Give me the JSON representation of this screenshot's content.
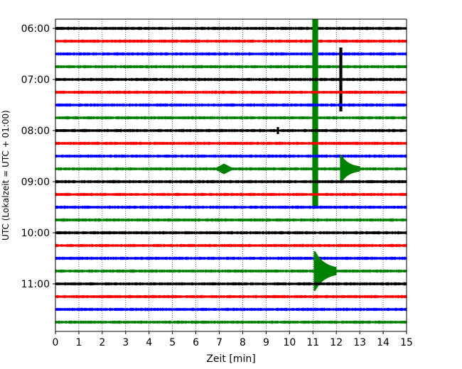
{
  "chart_data": {
    "type": "line",
    "title": "",
    "xlabel": "Zeit  [min]",
    "ylabel": "UTC (Lokalzeit = UTC + 01:00)",
    "xlim": [
      0,
      15
    ],
    "x_ticks": [
      0,
      1,
      2,
      3,
      4,
      5,
      6,
      7,
      8,
      9,
      10,
      11,
      12,
      13,
      14,
      15
    ],
    "x_tick_labels": [
      "0",
      "1",
      "2",
      "3",
      "4",
      "5",
      "6",
      "7",
      "8",
      "9",
      "10",
      "11",
      "12",
      "13",
      "14",
      "15"
    ],
    "y_tick_labels": [
      "06:00",
      "07:00",
      "08:00",
      "09:00",
      "10:00",
      "11:00"
    ],
    "y_tick_traces": [
      0,
      4,
      8,
      12,
      16,
      20
    ],
    "grid": "vertical dotted lines at each minute",
    "trace_colors": [
      "#000000",
      "#ff0000",
      "#0000ff",
      "#008000"
    ],
    "trace_start_times": [
      "06:00",
      "06:15",
      "06:30",
      "06:45",
      "07:00",
      "07:15",
      "07:30",
      "07:45",
      "08:00",
      "08:15",
      "08:30",
      "08:45",
      "09:00",
      "09:15",
      "09:30",
      "09:45",
      "10:00",
      "10:15",
      "10:30",
      "10:45",
      "11:00",
      "11:15",
      "11:30",
      "11:45"
    ],
    "events": [
      {
        "trace": 3,
        "x": 11.1,
        "kind": "very large spike spanning plot"
      },
      {
        "trace": 4,
        "x": 12.2,
        "kind": "large spike"
      },
      {
        "trace": 11,
        "x": 12.2,
        "kind": "seismic burst"
      },
      {
        "trace": 11,
        "x": 7.2,
        "kind": "small burst"
      },
      {
        "trace": 19,
        "x": 11.1,
        "kind": "large seismic burst"
      },
      {
        "trace": 8,
        "x": 9.5,
        "kind": "small spike"
      }
    ]
  }
}
